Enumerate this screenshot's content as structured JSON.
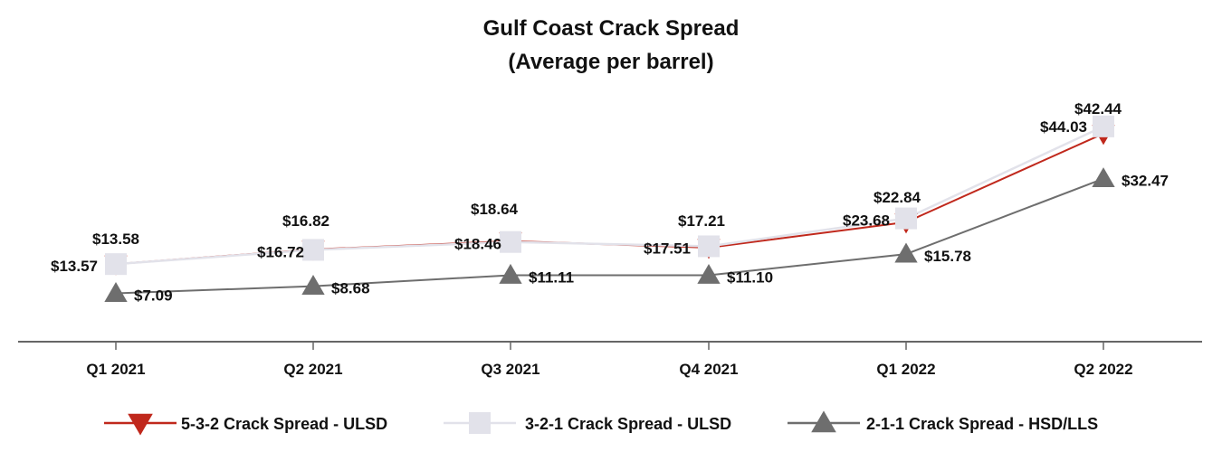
{
  "chart_data": {
    "type": "line",
    "title": "Gulf Coast Crack Spread",
    "subtitle": "(Average per barrel)",
    "categories": [
      "Q1 2021",
      "Q2 2021",
      "Q3 2021",
      "Q4 2021",
      "Q1 2022",
      "Q2 2022"
    ],
    "ylim": [
      0,
      50
    ],
    "grid": false,
    "legend_position": "bottom",
    "series": [
      {
        "name": "5-3-2 Crack Spread - ULSD",
        "values": [
          13.58,
          16.82,
          18.64,
          17.21,
          22.84,
          42.44
        ],
        "labels": [
          "$13.58",
          "$16.82",
          "$18.64",
          "$17.21",
          "$22.84",
          "$42.44"
        ],
        "color": "#c0281c",
        "marker": "triangle-down"
      },
      {
        "name": "3-2-1 Crack Spread - ULSD",
        "values": [
          13.57,
          16.72,
          18.46,
          17.51,
          23.68,
          44.03
        ],
        "labels": [
          "$13.57",
          "$16.72",
          "$18.46",
          "$17.51",
          "$23.68",
          "$44.03"
        ],
        "color": "#e2e2ea",
        "marker": "square"
      },
      {
        "name": "2-1-1 Crack Spread - HSD/LLS",
        "values": [
          7.09,
          8.68,
          11.11,
          11.1,
          15.78,
          32.47
        ],
        "labels": [
          "$7.09",
          "$8.68",
          "$11.11",
          "$11.10",
          "$15.78",
          "$32.47"
        ],
        "color": "#6e6e6e",
        "marker": "triangle-up"
      }
    ]
  }
}
